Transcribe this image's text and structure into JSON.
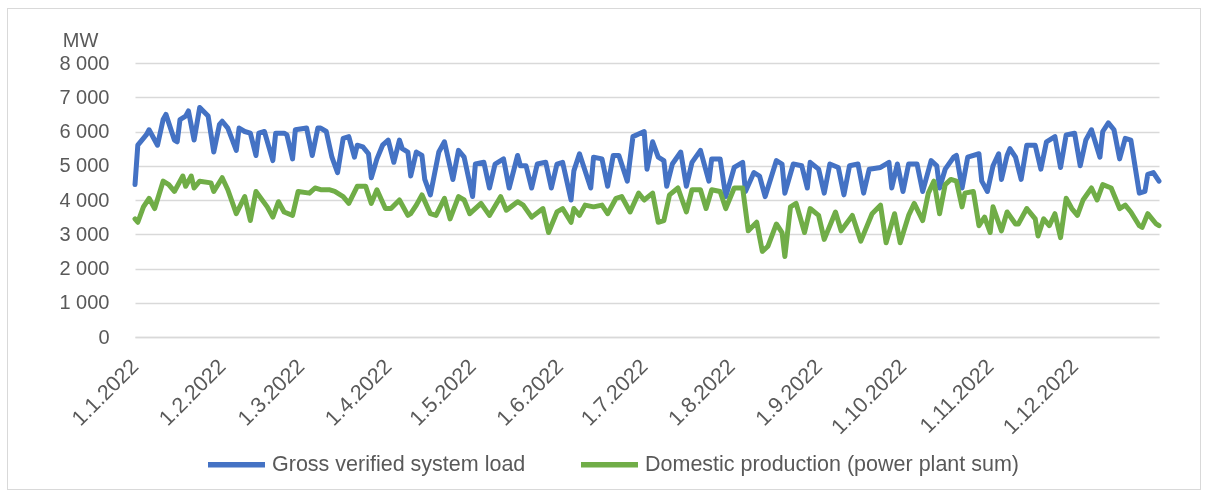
{
  "chart_data": {
    "type": "line",
    "ylabel": "MW",
    "xlim": [
      "2022-01-01",
      "2022-12-31"
    ],
    "xticks": [
      {
        "value": "2022-01-01",
        "label": "1.1.2022"
      },
      {
        "value": "2022-02-01",
        "label": "1.2.2022"
      },
      {
        "value": "2022-03-01",
        "label": "1.3.2022"
      },
      {
        "value": "2022-04-01",
        "label": "1.4.2022"
      },
      {
        "value": "2022-05-01",
        "label": "1.5.2022"
      },
      {
        "value": "2022-06-01",
        "label": "1.6.2022"
      },
      {
        "value": "2022-07-01",
        "label": "1.7.2022"
      },
      {
        "value": "2022-08-01",
        "label": "1.8.2022"
      },
      {
        "value": "2022-09-01",
        "label": "1.9.2022"
      },
      {
        "value": "2022-10-01",
        "label": "1.10.2022"
      },
      {
        "value": "2022-11-01",
        "label": "1.11.2022"
      },
      {
        "value": "2022-12-01",
        "label": "1.12.2022"
      }
    ],
    "ylim": [
      0,
      8000
    ],
    "yticks": [
      0,
      {
        "value": 1000,
        "label": "1 000"
      },
      {
        "value": 2000,
        "label": "2 000"
      },
      {
        "value": 3000,
        "label": "3 000"
      },
      {
        "value": 4000,
        "label": "4 000"
      },
      {
        "value": 5000,
        "label": "5 000"
      },
      {
        "value": 6000,
        "label": "6 000"
      },
      {
        "value": 7000,
        "label": "7 000"
      },
      {
        "value": 8000,
        "label": "8 000"
      }
    ],
    "grid": "y",
    "legend": "bottom",
    "series": [
      {
        "name": "Gross verified system load",
        "color": "#4472c4",
        "x": [
          "2022-01-01",
          "2022-01-02",
          "2022-01-05",
          "2022-01-06",
          "2022-01-09",
          "2022-01-11",
          "2022-01-12",
          "2022-01-15",
          "2022-01-16",
          "2022-01-17",
          "2022-01-19",
          "2022-01-20",
          "2022-01-22",
          "2022-01-24",
          "2022-01-27",
          "2022-01-29",
          "2022-01-31",
          "2022-02-01",
          "2022-02-03",
          "2022-02-06",
          "2022-02-07",
          "2022-02-09",
          "2022-02-11",
          "2022-02-13",
          "2022-02-14",
          "2022-02-16",
          "2022-02-19",
          "2022-02-20",
          "2022-02-23",
          "2022-02-24",
          "2022-02-26",
          "2022-02-27",
          "2022-03-03",
          "2022-03-05",
          "2022-03-07",
          "2022-03-08",
          "2022-03-10",
          "2022-03-12",
          "2022-03-14",
          "2022-03-16",
          "2022-03-18",
          "2022-03-20",
          "2022-03-21",
          "2022-03-23",
          "2022-03-25",
          "2022-03-26",
          "2022-03-28",
          "2022-03-30",
          "2022-04-01",
          "2022-04-03",
          "2022-04-05",
          "2022-04-06",
          "2022-04-08",
          "2022-04-09",
          "2022-04-11",
          "2022-04-13",
          "2022-04-14",
          "2022-04-16",
          "2022-04-19",
          "2022-04-21",
          "2022-04-24",
          "2022-04-26",
          "2022-04-28",
          "2022-05-01",
          "2022-05-02",
          "2022-05-05",
          "2022-05-07",
          "2022-05-09",
          "2022-05-12",
          "2022-05-14",
          "2022-05-17",
          "2022-05-18",
          "2022-05-20",
          "2022-05-22",
          "2022-05-24",
          "2022-05-27",
          "2022-05-29",
          "2022-05-31",
          "2022-06-02",
          "2022-06-05",
          "2022-06-06",
          "2022-06-08",
          "2022-06-12",
          "2022-06-13",
          "2022-06-16",
          "2022-06-18",
          "2022-06-20",
          "2022-06-22",
          "2022-06-25",
          "2022-06-27",
          "2022-07-01",
          "2022-07-02",
          "2022-07-04",
          "2022-07-06",
          "2022-07-08",
          "2022-07-09",
          "2022-07-11",
          "2022-07-14",
          "2022-07-16",
          "2022-07-18",
          "2022-07-21",
          "2022-07-24",
          "2022-07-25",
          "2022-07-28",
          "2022-07-30",
          "2022-08-02",
          "2022-08-05",
          "2022-08-06",
          "2022-08-09",
          "2022-08-11",
          "2022-08-13",
          "2022-08-17",
          "2022-08-19",
          "2022-08-20",
          "2022-08-23",
          "2022-08-26",
          "2022-08-28",
          "2022-08-29",
          "2022-09-01",
          "2022-09-03",
          "2022-09-05",
          "2022-09-08",
          "2022-09-10",
          "2022-09-12",
          "2022-09-15",
          "2022-09-17",
          "2022-09-19",
          "2022-09-23",
          "2022-09-26",
          "2022-09-27",
          "2022-09-29",
          "2022-10-01",
          "2022-10-03",
          "2022-10-06",
          "2022-10-08",
          "2022-10-11",
          "2022-10-13",
          "2022-10-14",
          "2022-10-16",
          "2022-10-19",
          "2022-10-20",
          "2022-10-22",
          "2022-10-24",
          "2022-10-28",
          "2022-10-29",
          "2022-10-31",
          "2022-11-02",
          "2022-11-04",
          "2022-11-05",
          "2022-11-07",
          "2022-11-08",
          "2022-11-10",
          "2022-11-12",
          "2022-11-14",
          "2022-11-17",
          "2022-11-19",
          "2022-11-21",
          "2022-11-24",
          "2022-11-26",
          "2022-11-28",
          "2022-12-01",
          "2022-12-03",
          "2022-12-05",
          "2022-12-07",
          "2022-12-10",
          "2022-12-11",
          "2022-12-13",
          "2022-12-15",
          "2022-12-17",
          "2022-12-19",
          "2022-12-21",
          "2022-12-24",
          "2022-12-26",
          "2022-12-27",
          "2022-12-29",
          "2022-12-31"
        ],
        "values": [
          4450,
          5600,
          5900,
          6050,
          5600,
          6350,
          6500,
          5750,
          5700,
          6350,
          6450,
          6600,
          5750,
          6700,
          6450,
          5400,
          6200,
          6300,
          6100,
          5450,
          6100,
          6000,
          5950,
          5300,
          5950,
          6000,
          5150,
          5950,
          5950,
          5900,
          5200,
          6050,
          6100,
          5300,
          6100,
          6100,
          6000,
          5250,
          4800,
          5800,
          5850,
          5250,
          5600,
          5550,
          5350,
          4650,
          5200,
          5600,
          5750,
          5100,
          5750,
          5500,
          5400,
          4700,
          5400,
          5300,
          4600,
          4150,
          5400,
          5700,
          4600,
          5450,
          5250,
          4100,
          5050,
          5100,
          4350,
          5050,
          5200,
          4350,
          5300,
          5000,
          5000,
          4350,
          5050,
          5100,
          4350,
          5050,
          5100,
          4000,
          4850,
          5350,
          4350,
          5250,
          5200,
          4400,
          5300,
          5300,
          4550,
          5850,
          6000,
          4900,
          5700,
          5250,
          5150,
          4400,
          5050,
          5400,
          4400,
          5100,
          5450,
          4550,
          5200,
          5200,
          4100,
          4950,
          5100,
          4250,
          4800,
          4700,
          4100,
          5150,
          5050,
          4200,
          5050,
          5000,
          4350,
          5100,
          4900,
          4200,
          5050,
          4950,
          4150,
          5000,
          5050,
          4200,
          4900,
          4950,
          5100,
          4350,
          5050,
          4250,
          5050,
          5050,
          4250,
          5150,
          5000,
          4350,
          4900,
          5250,
          5300,
          4350,
          5250,
          5350,
          4550,
          4250,
          5000,
          5350,
          4600,
          5300,
          5500,
          5250,
          4600,
          5600,
          5600,
          4900,
          5700,
          5850,
          4950,
          5900,
          5950,
          5000,
          5750,
          6050,
          5250,
          6000,
          6250,
          6050,
          5200,
          5800,
          5750,
          4200,
          4250,
          4750,
          4800,
          4550
        ]
      },
      {
        "name": "Domestic production (power plant sum)",
        "color": "#70ad47",
        "x": [
          "2022-01-01",
          "2022-01-02",
          "2022-01-04",
          "2022-01-06",
          "2022-01-08",
          "2022-01-11",
          "2022-01-13",
          "2022-01-15",
          "2022-01-18",
          "2022-01-19",
          "2022-01-21",
          "2022-01-22",
          "2022-01-24",
          "2022-01-28",
          "2022-01-29",
          "2022-02-01",
          "2022-02-03",
          "2022-02-06",
          "2022-02-09",
          "2022-02-11",
          "2022-02-13",
          "2022-02-17",
          "2022-02-19",
          "2022-02-21",
          "2022-02-23",
          "2022-02-26",
          "2022-02-28",
          "2022-03-04",
          "2022-03-06",
          "2022-03-08",
          "2022-03-11",
          "2022-03-13",
          "2022-03-16",
          "2022-03-18",
          "2022-03-21",
          "2022-03-24",
          "2022-03-26",
          "2022-03-28",
          "2022-03-31",
          "2022-04-02",
          "2022-04-05",
          "2022-04-08",
          "2022-04-09",
          "2022-04-11",
          "2022-04-13",
          "2022-04-16",
          "2022-04-18",
          "2022-04-21",
          "2022-04-23",
          "2022-04-26",
          "2022-04-28",
          "2022-04-30",
          "2022-05-04",
          "2022-05-07",
          "2022-05-11",
          "2022-05-13",
          "2022-05-17",
          "2022-05-19",
          "2022-05-22",
          "2022-05-26",
          "2022-05-28",
          "2022-05-31",
          "2022-06-02",
          "2022-06-05",
          "2022-06-06",
          "2022-06-08",
          "2022-06-10",
          "2022-06-13",
          "2022-06-16",
          "2022-06-18",
          "2022-06-21",
          "2022-06-23",
          "2022-06-26",
          "2022-06-29",
          "2022-07-01",
          "2022-07-04",
          "2022-07-06",
          "2022-07-08",
          "2022-07-10",
          "2022-07-13",
          "2022-07-16",
          "2022-07-18",
          "2022-07-21",
          "2022-07-23",
          "2022-07-25",
          "2022-07-28",
          "2022-07-30",
          "2022-08-02",
          "2022-08-05",
          "2022-08-07",
          "2022-08-10",
          "2022-08-12",
          "2022-08-14",
          "2022-08-17",
          "2022-08-19",
          "2022-08-20",
          "2022-08-22",
          "2022-08-24",
          "2022-08-27",
          "2022-08-29",
          "2022-09-01",
          "2022-09-03",
          "2022-09-07",
          "2022-09-09",
          "2022-09-13",
          "2022-09-16",
          "2022-09-20",
          "2022-09-23",
          "2022-09-25",
          "2022-09-28",
          "2022-09-30",
          "2022-10-03",
          "2022-10-05",
          "2022-10-08",
          "2022-10-10",
          "2022-10-12",
          "2022-10-14",
          "2022-10-16",
          "2022-10-18",
          "2022-10-20",
          "2022-10-22",
          "2022-10-23",
          "2022-10-26",
          "2022-10-28",
          "2022-10-30",
          "2022-11-01",
          "2022-11-02",
          "2022-11-05",
          "2022-11-07",
          "2022-11-10",
          "2022-11-11",
          "2022-11-14",
          "2022-11-17",
          "2022-11-18",
          "2022-11-20",
          "2022-11-22",
          "2022-11-24",
          "2022-11-26",
          "2022-11-28",
          "2022-11-30",
          "2022-12-02",
          "2022-12-04",
          "2022-12-07",
          "2022-12-09",
          "2022-12-11",
          "2022-12-14",
          "2022-12-17",
          "2022-12-19",
          "2022-12-21",
          "2022-12-24",
          "2022-12-25",
          "2022-12-27",
          "2022-12-30",
          "2022-12-31"
        ],
        "values": [
          3450,
          3350,
          3800,
          4050,
          3750,
          4550,
          4450,
          4250,
          4700,
          4400,
          4700,
          4350,
          4550,
          4500,
          4250,
          4650,
          4300,
          3600,
          4100,
          3400,
          4250,
          3800,
          3500,
          3950,
          3650,
          3550,
          4250,
          4200,
          4350,
          4300,
          4300,
          4250,
          4100,
          3900,
          4400,
          4400,
          3900,
          4300,
          3750,
          3750,
          4000,
          3550,
          3600,
          3850,
          4150,
          3600,
          3550,
          4050,
          3450,
          4100,
          4000,
          3600,
          3900,
          3550,
          4100,
          3700,
          3950,
          3850,
          3500,
          3750,
          3050,
          3650,
          3750,
          3350,
          3750,
          3550,
          3850,
          3800,
          3850,
          3600,
          4050,
          4100,
          3650,
          4200,
          4000,
          4200,
          3350,
          3400,
          4150,
          4350,
          3650,
          4300,
          4300,
          3750,
          4300,
          4250,
          3750,
          4350,
          4350,
          3100,
          3350,
          2500,
          2650,
          3300,
          3050,
          2350,
          3800,
          3900,
          3050,
          3750,
          3550,
          2850,
          3650,
          3100,
          3550,
          2800,
          3600,
          3850,
          2750,
          3600,
          2750,
          3550,
          3900,
          3400,
          4200,
          4550,
          3600,
          4450,
          4600,
          4550,
          3800,
          4200,
          4250,
          3250,
          3500,
          3050,
          3800,
          3100,
          3650,
          3300,
          3300,
          3750,
          3450,
          2950,
          3450,
          3250,
          3600,
          2900,
          4050,
          3750,
          3550,
          4000,
          4350,
          4000,
          4450,
          4350,
          3750,
          3850,
          3650,
          3250,
          3200,
          3600,
          3300,
          3250
        ]
      }
    ]
  }
}
